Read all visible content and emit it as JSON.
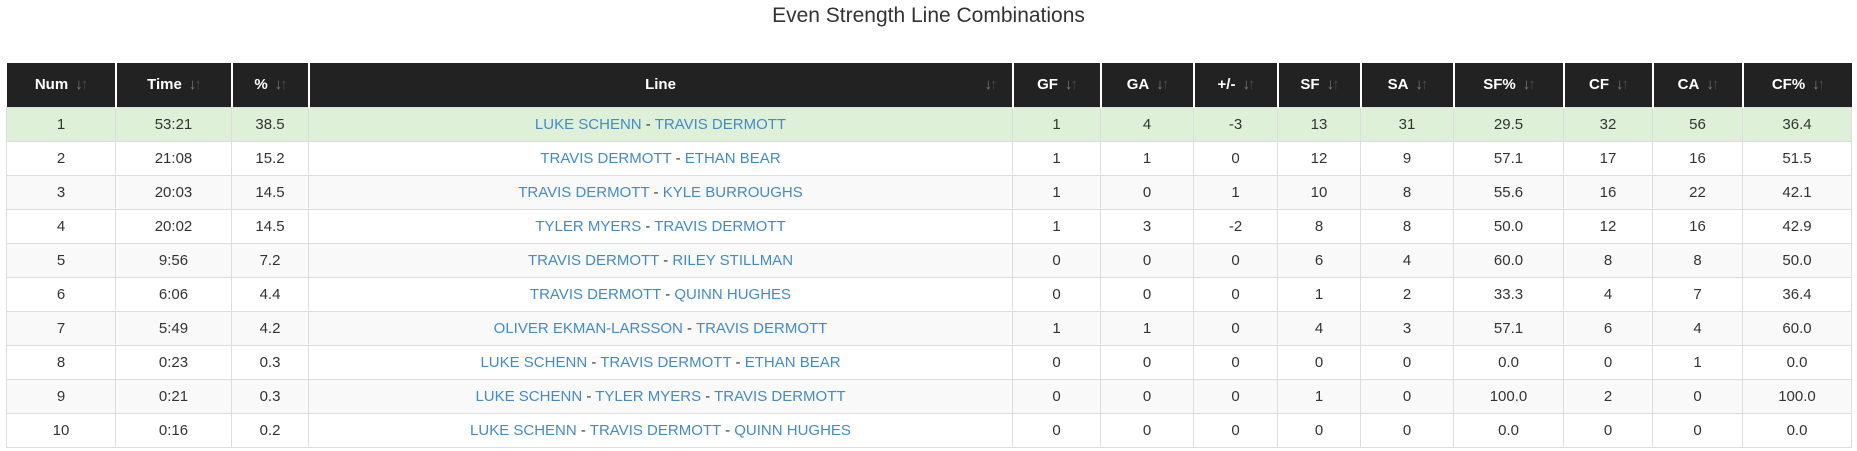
{
  "title": "Even Strength Line Combinations",
  "colors": {
    "header_bg": "#222222",
    "header_text": "#ffffff",
    "highlight_row_bg": "#dff0d8",
    "striped_row_bg": "#f9f9f9",
    "link_blue": "#428bca",
    "cell_border": "#dddddd",
    "body_text": "#333333"
  },
  "icons": {
    "sort_down": "↓",
    "sort_up": "↑"
  },
  "table": {
    "columns": [
      {
        "key": "num",
        "label": "Num",
        "sortable": true
      },
      {
        "key": "time",
        "label": "Time",
        "sortable": true
      },
      {
        "key": "pct",
        "label": "%",
        "sortable": true
      },
      {
        "key": "line",
        "label": "Line",
        "sortable": true
      },
      {
        "key": "gf",
        "label": "GF",
        "sortable": true
      },
      {
        "key": "ga",
        "label": "GA",
        "sortable": true
      },
      {
        "key": "pm",
        "label": "+/-",
        "sortable": true
      },
      {
        "key": "sf",
        "label": "SF",
        "sortable": true
      },
      {
        "key": "sa",
        "label": "SA",
        "sortable": true
      },
      {
        "key": "sfpct",
        "label": "SF%",
        "sortable": true
      },
      {
        "key": "cf",
        "label": "CF",
        "sortable": true
      },
      {
        "key": "ca",
        "label": "CA",
        "sortable": true
      },
      {
        "key": "cfpct",
        "label": "CF%",
        "sortable": true
      }
    ],
    "player_separator": " - ",
    "rows": [
      {
        "highlight": true,
        "num": "1",
        "time": "53:21",
        "pct": "38.5",
        "players": [
          "LUKE SCHENN",
          "TRAVIS DERMOTT"
        ],
        "gf": "1",
        "ga": "4",
        "pm": "-3",
        "sf": "13",
        "sa": "31",
        "sfpct": "29.5",
        "cf": "32",
        "ca": "56",
        "cfpct": "36.4"
      },
      {
        "highlight": false,
        "num": "2",
        "time": "21:08",
        "pct": "15.2",
        "players": [
          "TRAVIS DERMOTT",
          "ETHAN BEAR"
        ],
        "gf": "1",
        "ga": "1",
        "pm": "0",
        "sf": "12",
        "sa": "9",
        "sfpct": "57.1",
        "cf": "17",
        "ca": "16",
        "cfpct": "51.5"
      },
      {
        "highlight": false,
        "num": "3",
        "time": "20:03",
        "pct": "14.5",
        "players": [
          "TRAVIS DERMOTT",
          "KYLE BURROUGHS"
        ],
        "gf": "1",
        "ga": "0",
        "pm": "1",
        "sf": "10",
        "sa": "8",
        "sfpct": "55.6",
        "cf": "16",
        "ca": "22",
        "cfpct": "42.1"
      },
      {
        "highlight": false,
        "num": "4",
        "time": "20:02",
        "pct": "14.5",
        "players": [
          "TYLER MYERS",
          "TRAVIS DERMOTT"
        ],
        "gf": "1",
        "ga": "3",
        "pm": "-2",
        "sf": "8",
        "sa": "8",
        "sfpct": "50.0",
        "cf": "12",
        "ca": "16",
        "cfpct": "42.9"
      },
      {
        "highlight": false,
        "num": "5",
        "time": "9:56",
        "pct": "7.2",
        "players": [
          "TRAVIS DERMOTT",
          "RILEY STILLMAN"
        ],
        "gf": "0",
        "ga": "0",
        "pm": "0",
        "sf": "6",
        "sa": "4",
        "sfpct": "60.0",
        "cf": "8",
        "ca": "8",
        "cfpct": "50.0"
      },
      {
        "highlight": false,
        "num": "6",
        "time": "6:06",
        "pct": "4.4",
        "players": [
          "TRAVIS DERMOTT",
          "QUINN HUGHES"
        ],
        "gf": "0",
        "ga": "0",
        "pm": "0",
        "sf": "1",
        "sa": "2",
        "sfpct": "33.3",
        "cf": "4",
        "ca": "7",
        "cfpct": "36.4"
      },
      {
        "highlight": false,
        "num": "7",
        "time": "5:49",
        "pct": "4.2",
        "players": [
          "OLIVER EKMAN-LARSSON",
          "TRAVIS DERMOTT"
        ],
        "gf": "1",
        "ga": "1",
        "pm": "0",
        "sf": "4",
        "sa": "3",
        "sfpct": "57.1",
        "cf": "6",
        "ca": "4",
        "cfpct": "60.0"
      },
      {
        "highlight": false,
        "num": "8",
        "time": "0:23",
        "pct": "0.3",
        "players": [
          "LUKE SCHENN",
          "TRAVIS DERMOTT",
          "ETHAN BEAR"
        ],
        "gf": "0",
        "ga": "0",
        "pm": "0",
        "sf": "0",
        "sa": "0",
        "sfpct": "0.0",
        "cf": "0",
        "ca": "1",
        "cfpct": "0.0"
      },
      {
        "highlight": false,
        "num": "9",
        "time": "0:21",
        "pct": "0.3",
        "players": [
          "LUKE SCHENN",
          "TYLER MYERS",
          "TRAVIS DERMOTT"
        ],
        "gf": "0",
        "ga": "0",
        "pm": "0",
        "sf": "1",
        "sa": "0",
        "sfpct": "100.0",
        "cf": "2",
        "ca": "0",
        "cfpct": "100.0"
      },
      {
        "highlight": false,
        "num": "10",
        "time": "0:16",
        "pct": "0.2",
        "players": [
          "LUKE SCHENN",
          "TRAVIS DERMOTT",
          "QUINN HUGHES"
        ],
        "gf": "0",
        "ga": "0",
        "pm": "0",
        "sf": "0",
        "sa": "0",
        "sfpct": "0.0",
        "cf": "0",
        "ca": "0",
        "cfpct": "0.0"
      }
    ]
  }
}
